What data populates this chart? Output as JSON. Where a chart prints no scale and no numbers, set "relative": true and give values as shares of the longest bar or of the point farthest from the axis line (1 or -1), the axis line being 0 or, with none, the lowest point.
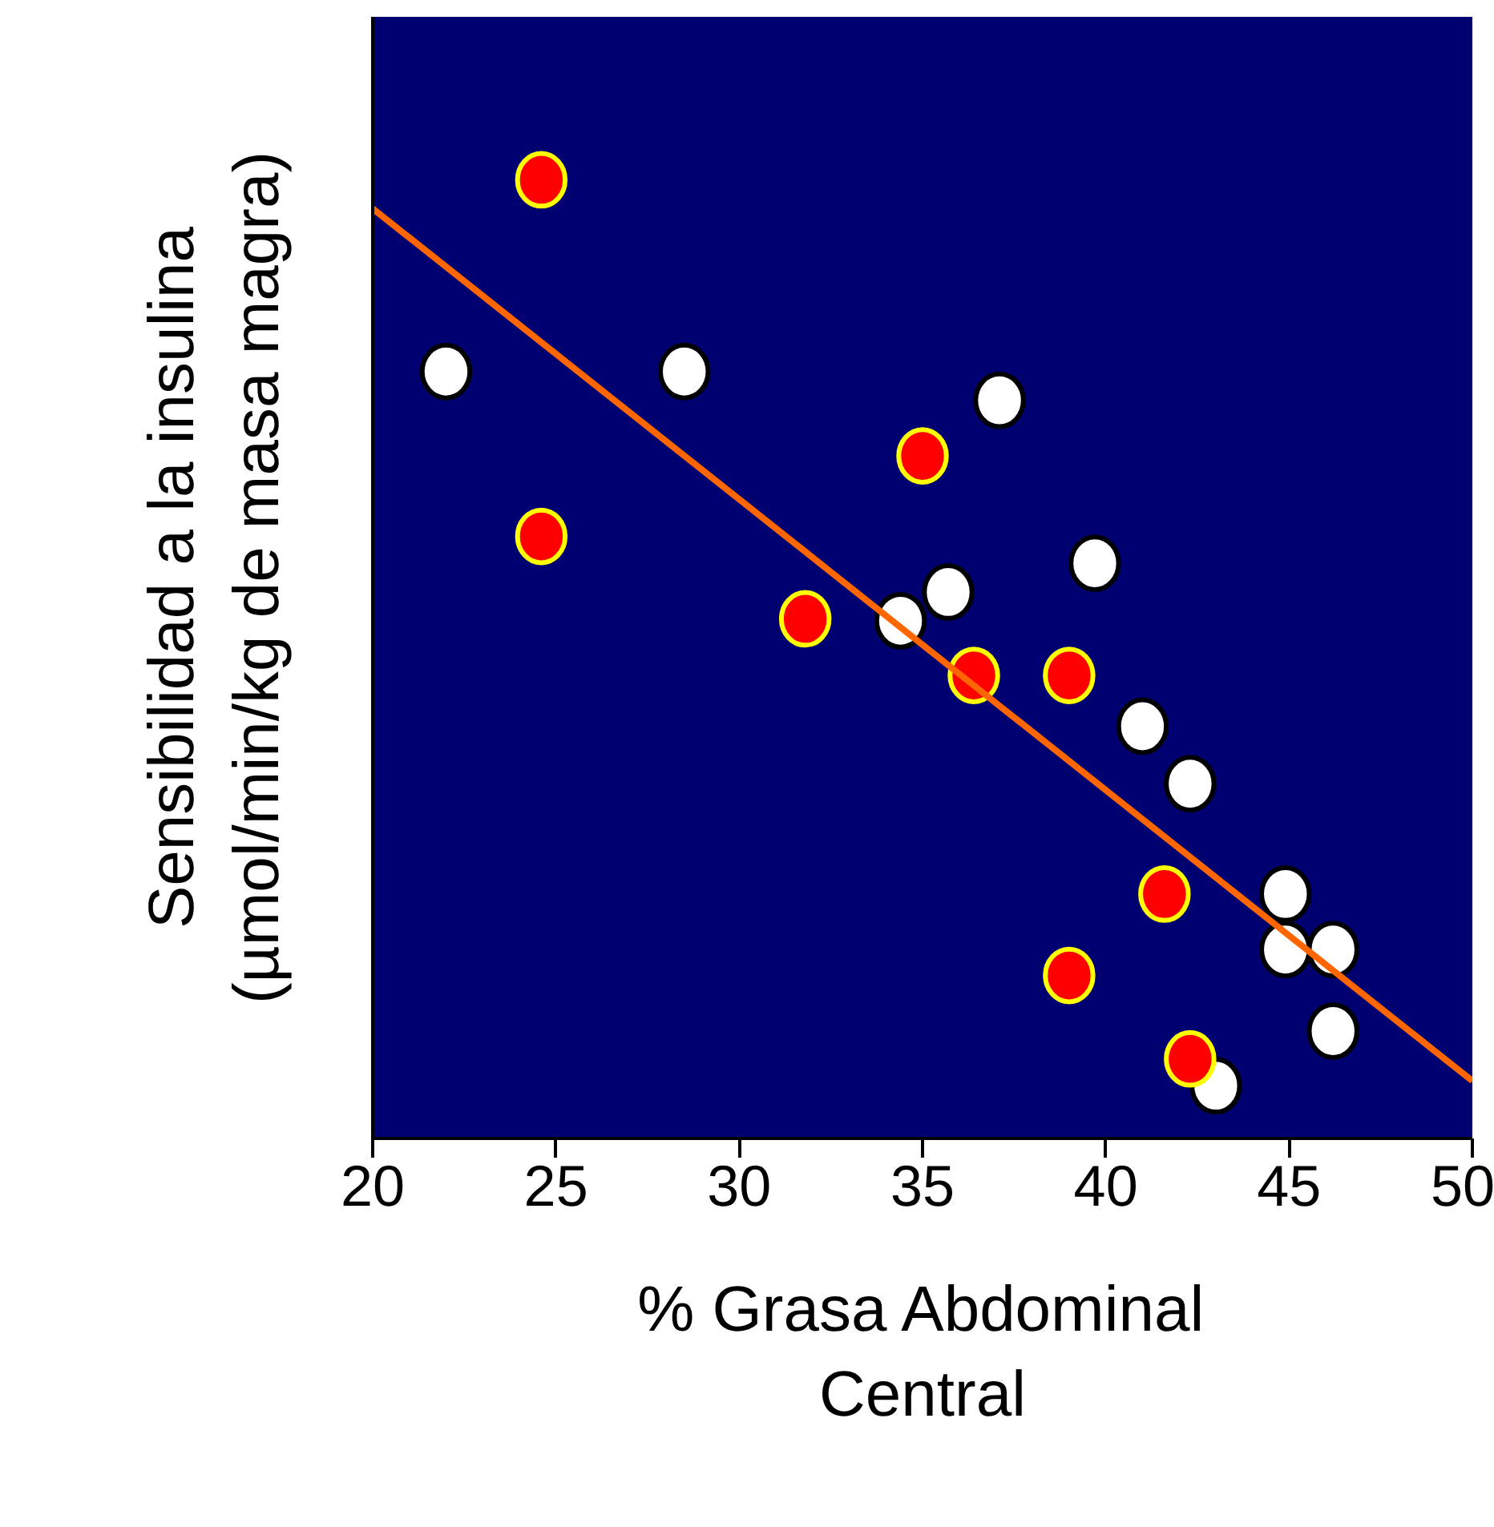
{
  "chart_data": {
    "type": "scatter",
    "xlabel": "% Grasa Abdominal\nCentral",
    "ylabel": "Sensibilidad a la insulina\n(µmol/min/kg de masa magra)",
    "relative": true,
    "xlim": [
      20,
      50
    ],
    "xticks": [
      20,
      25,
      30,
      35,
      40,
      45,
      50
    ],
    "grid": false,
    "series": [
      {
        "color": "#ffffff",
        "marker": "circle",
        "x": [
          22.0,
          28.5,
          37.1,
          39.7,
          35.7,
          34.4,
          41.0,
          42.3,
          44.9,
          44.9,
          46.2,
          46.2,
          43.0
        ],
        "values": [
          0.8,
          0.8,
          0.77,
          0.6,
          0.57,
          0.54,
          0.43,
          0.37,
          0.255,
          0.197,
          0.197,
          0.112,
          0.055
        ]
      },
      {
        "color": "#ff0000",
        "marker": "circle",
        "x": [
          24.6,
          24.6,
          35.0,
          31.8,
          36.4,
          39.0,
          41.6,
          39.0,
          42.3
        ],
        "values": [
          1.0,
          0.628,
          0.712,
          0.542,
          0.483,
          0.483,
          0.255,
          0.17,
          0.083
        ]
      },
      {
        "type": "line",
        "color": "#ff6600",
        "x": [
          20,
          50
        ],
        "values": [
          0.97,
          0.06
        ],
        "line_style": "solid"
      }
    ]
  }
}
